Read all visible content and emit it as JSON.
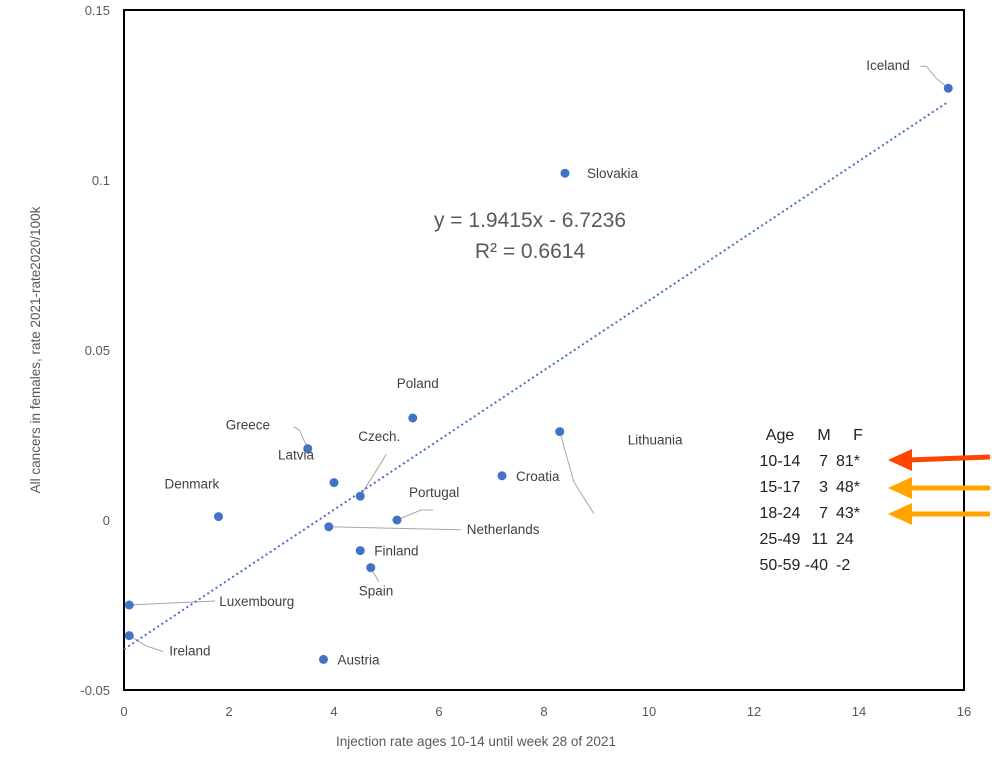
{
  "chart_data": {
    "type": "scatter",
    "title": "",
    "xlabel": "Injection rate ages 10-14 until week  28 of 2021",
    "ylabel": "All cancers in females, rate 2021-rate2020/100k",
    "xlim": [
      0,
      16
    ],
    "ylim": [
      -0.05,
      0.15
    ],
    "x_ticks": [
      "0",
      "2",
      "4",
      "6",
      "8",
      "10",
      "12",
      "14",
      "16"
    ],
    "y_ticks": [
      "-0.05",
      "0",
      "0.05",
      "0.1",
      "0.15"
    ],
    "points": [
      {
        "name": "Iceland",
        "x": 15.7,
        "y": 0.127
      },
      {
        "name": "Slovakia",
        "x": 8.4,
        "y": 0.102
      },
      {
        "name": "Poland",
        "x": 5.5,
        "y": 0.03
      },
      {
        "name": "Lithuania",
        "x": 8.3,
        "y": 0.026
      },
      {
        "name": "Greece",
        "x": 3.5,
        "y": 0.021
      },
      {
        "name": "Latvia",
        "x": 4.0,
        "y": 0.011
      },
      {
        "name": "Croatia",
        "x": 7.2,
        "y": 0.013
      },
      {
        "name": "Czech.",
        "x": 4.5,
        "y": 0.007
      },
      {
        "name": "Portugal",
        "x": 5.2,
        "y": 0.0
      },
      {
        "name": "Denmark",
        "x": 1.8,
        "y": 0.001
      },
      {
        "name": "Netherlands",
        "x": 3.9,
        "y": -0.002
      },
      {
        "name": "Finland",
        "x": 4.5,
        "y": -0.009
      },
      {
        "name": "Spain",
        "x": 4.7,
        "y": -0.014
      },
      {
        "name": "Luxembourg",
        "x": 0.1,
        "y": -0.025
      },
      {
        "name": "Ireland",
        "x": 0.1,
        "y": -0.034
      },
      {
        "name": "Austria",
        "x": 3.8,
        "y": -0.041
      }
    ],
    "trendline": {
      "type": "linear",
      "equation": "y = 1.9415x - 6.7236",
      "r_squared": "R² = 0.6614",
      "x_range": [
        0,
        15.7
      ],
      "y_range": [
        -0.038,
        0.123
      ]
    }
  },
  "age_table": {
    "header": [
      "Age",
      "M",
      "F"
    ],
    "rows": [
      [
        "10-14",
        "7",
        "81*"
      ],
      [
        "15-17",
        "3",
        "48*"
      ],
      [
        "18-24",
        "7",
        "43*"
      ],
      [
        "25-49",
        "11",
        "24"
      ],
      [
        "50-59",
        "-40",
        "-2"
      ]
    ]
  },
  "colors": {
    "point": "#4472c4",
    "trendline": "#4472c4",
    "arrow_red": "#ff4500",
    "arrow_orange": "#ffa500"
  }
}
